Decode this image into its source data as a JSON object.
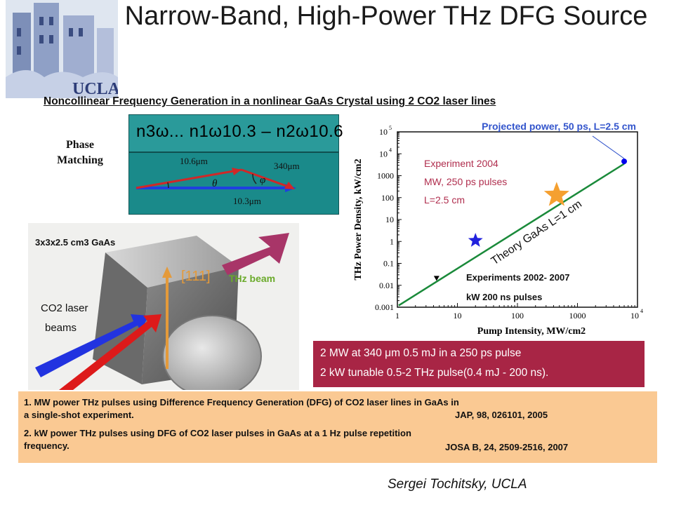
{
  "title": "Narrow-Band, High-Power THz DFG Source",
  "logo_text": "UCLA",
  "subtitle": "Noncollinear Frequency Generation in a nonlinear GaAs Crystal using 2 CO2 laser lines",
  "phase_matching": {
    "label_line1": "Phase",
    "label_line2": "Matching",
    "equation": "n3ω... n1ω10.3 – n2ω10.6",
    "vec_10_6": "10.6μm",
    "vec_340": "340μm",
    "vec_10_3": "10.3μm",
    "theta": "θ",
    "phi": "φ"
  },
  "photo": {
    "crystal_label": "3x3x2.5 cm3 GaAs",
    "axis_label": "[111]",
    "thz_beam": "THz beam",
    "co2_line1": "CO2 laser",
    "co2_line2": "beams"
  },
  "chart_data": {
    "type": "scatter",
    "xlabel": "Pump Intensity, MW/cm2",
    "ylabel": "THz Power Density, kW/cm2",
    "x_scale": "log",
    "y_scale": "log",
    "xlim": [
      1,
      10000
    ],
    "ylim": [
      0.001,
      100000
    ],
    "x_ticks": [
      "1",
      "10",
      "100",
      "1000",
      "10^4"
    ],
    "y_ticks": [
      "0.001",
      "0.01",
      "0.1",
      "1",
      "10",
      "100",
      "1000",
      "10^4",
      "10^5"
    ],
    "series": [
      {
        "name": "Theory GaAs L=1 cm",
        "type": "line",
        "x": [
          1.05,
          6000
        ],
        "y": [
          0.0012,
          3500
        ]
      },
      {
        "name": "Projected power, 50 ps, L=2.5 cm",
        "type": "point",
        "x": [
          6000
        ],
        "y": [
          4500
        ],
        "color": "#0000ee"
      },
      {
        "name": "Experiment 2004 MW, 250 ps pulses L=2.5 cm",
        "type": "point",
        "x": [
          450
        ],
        "y": [
          130
        ],
        "color": "#f5a030"
      },
      {
        "name": "Experiments 2002-2007 kW 200 ns pulses",
        "type": "point",
        "x": [
          20
        ],
        "y": [
          1.1
        ],
        "color": "#2222dd"
      },
      {
        "name": "",
        "type": "point",
        "x": [
          4.5
        ],
        "y": [
          0.02
        ],
        "color": "#000000"
      }
    ],
    "annotations": {
      "projected": "Projected power, 50 ps, L=2.5 cm",
      "exp2004_l1": "Experiment 2004",
      "exp2004_l2": "MW, 250 ps pulses",
      "exp2004_l3": "L=2.5 cm",
      "theory": "Theory GaAs L=1 cm",
      "exp2002_l1": "Experiments 2002- 2007",
      "exp2002_l2": "kW 200 ns pulses"
    }
  },
  "info": {
    "line1": "2 MW at 340 μm 0.5 mJ in a 250 ps pulse",
    "line2": "2 kW tunable 0.5-2 THz pulse(0.4 mJ - 200 ns)."
  },
  "notes": {
    "n1_line1": "1. MW power THz pulses using Difference Frequency Generation (DFG) of CO2 laser lines in GaAs in",
    "n1_line2": "a single-shot experiment.",
    "n1_ref": "JAP, 98, 026101, 2005",
    "n2_line1": "2. kW power THz pulses using DFG of CO2 laser pulses in GaAs at a 1 Hz pulse repetition",
    "n2_line2": "frequency.",
    "n2_ref": "JOSA B, 24, 2509-2516, 2007"
  },
  "author": "Sergei Tochitsky, UCLA",
  "colors": {
    "teal": "#1a8a8a",
    "info_bg": "#a82545",
    "notes_bg": "#fac993",
    "theory_line": "#1a8a3a"
  }
}
